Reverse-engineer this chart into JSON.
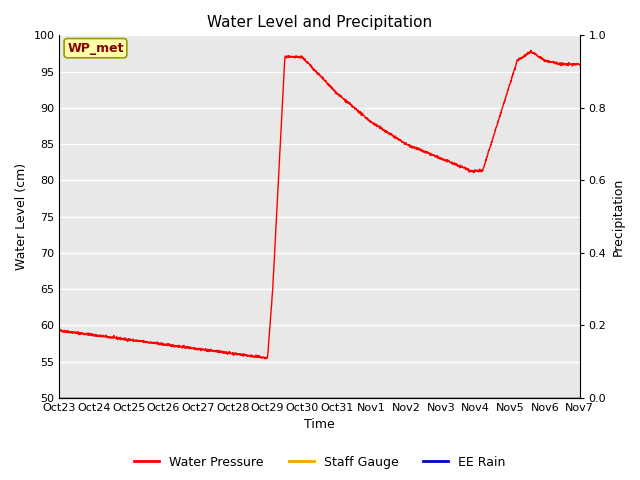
{
  "title": "Water Level and Precipitation",
  "xlabel": "Time",
  "ylabel_left": "Water Level (cm)",
  "ylabel_right": "Precipitation",
  "annotation": "WP_met",
  "ylim_left": [
    50,
    100
  ],
  "ylim_right": [
    0.0,
    1.0
  ],
  "yticks_left": [
    50,
    55,
    60,
    65,
    70,
    75,
    80,
    85,
    90,
    95,
    100
  ],
  "yticks_right": [
    0.0,
    0.2,
    0.4,
    0.6,
    0.8,
    1.0
  ],
  "x_tick_labels": [
    "Oct 23",
    "Oct 24",
    "Oct 25",
    "Oct 26",
    "Oct 27",
    "Oct 28",
    "Oct 29",
    "Oct 30",
    "Oct 31",
    "Nov 1",
    "Nov 2",
    "Nov 3",
    "Nov 4",
    "Nov 5",
    "Nov 6",
    "Nov 7"
  ],
  "bg_color": "#e8e8e8",
  "line_color_wp": "#ff0000",
  "line_color_sg": "#ffa500",
  "line_color_rain": "#0000cc",
  "legend_labels": [
    "Water Pressure",
    "Staff Gauge",
    "EE Rain"
  ],
  "title_fontsize": 11,
  "axis_label_fontsize": 9,
  "tick_fontsize": 8
}
